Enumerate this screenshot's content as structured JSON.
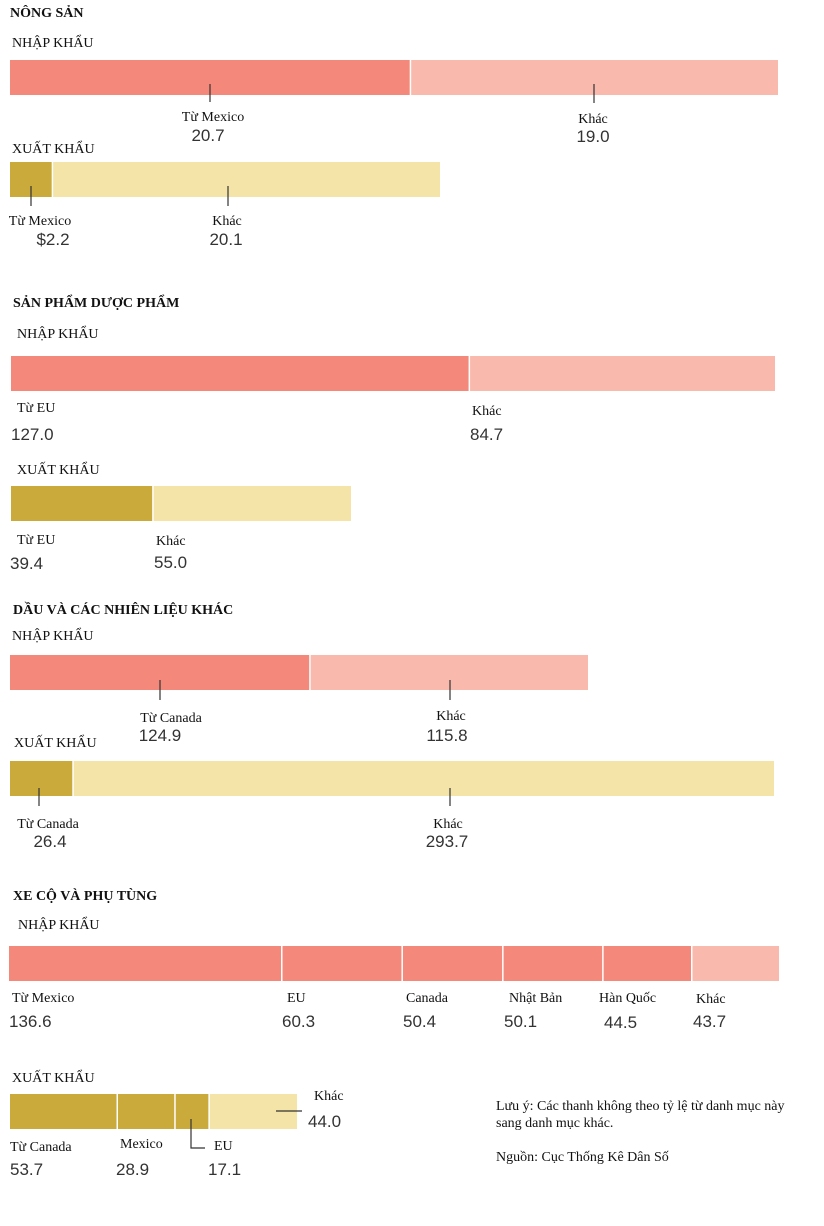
{
  "colors": {
    "import_main": "#f4887a",
    "import_other": "#f9b9ad",
    "export_main": "#c9aa3a",
    "export_other": "#f4e4a8",
    "tick": "#333333"
  },
  "chart_data": [
    {
      "type": "bar",
      "title": "NÔNG SẢN",
      "groups": [
        {
          "label": "NHẬP KHẨU",
          "kind": "import",
          "segments": [
            {
              "label": "Từ Mexico",
              "value": 20.7,
              "display": "20.7"
            },
            {
              "label": "Khác",
              "value": 19.0,
              "display": "19.0"
            }
          ]
        },
        {
          "label": "XUẤT KHẨU",
          "kind": "export",
          "segments": [
            {
              "label": "Từ Mexico",
              "value": 2.2,
              "display": "$2.2"
            },
            {
              "label": "Khác",
              "value": 20.1,
              "display": "20.1"
            }
          ]
        }
      ]
    },
    {
      "type": "bar",
      "title": "SẢN PHẨM DƯỢC PHẨM",
      "groups": [
        {
          "label": "NHẬP KHẨU",
          "kind": "import",
          "segments": [
            {
              "label": "Từ EU",
              "value": 127.0,
              "display": "127.0"
            },
            {
              "label": "Khác",
              "value": 84.7,
              "display": "84.7"
            }
          ]
        },
        {
          "label": "XUẤT KHẨU",
          "kind": "export",
          "segments": [
            {
              "label": "Từ EU",
              "value": 39.4,
              "display": "39.4"
            },
            {
              "label": "Khác",
              "value": 55.0,
              "display": "55.0"
            }
          ]
        }
      ]
    },
    {
      "type": "bar",
      "title": "DẦU VÀ CÁC NHIÊN LIỆU KHÁC",
      "groups": [
        {
          "label": "NHẬP KHẨU",
          "kind": "import",
          "segments": [
            {
              "label": "Từ Canada",
              "value": 124.9,
              "display": "124.9"
            },
            {
              "label": "Khác",
              "value": 115.8,
              "display": "115.8"
            }
          ]
        },
        {
          "label": "XUẤT KHẨU",
          "kind": "export",
          "segments": [
            {
              "label": "Từ Canada",
              "value": 26.4,
              "display": "26.4"
            },
            {
              "label": "Khác",
              "value": 293.7,
              "display": "293.7"
            }
          ]
        }
      ]
    },
    {
      "type": "bar",
      "title": "XE CỘ VÀ PHỤ TÙNG",
      "groups": [
        {
          "label": "NHẬP KHẨU",
          "kind": "import",
          "segments": [
            {
              "label": "Từ Mexico",
              "value": 136.6,
              "display": "136.6"
            },
            {
              "label": "EU",
              "value": 60.3,
              "display": "60.3"
            },
            {
              "label": "Canada",
              "value": 50.4,
              "display": "50.4"
            },
            {
              "label": "Nhật Bản",
              "value": 50.1,
              "display": "50.1"
            },
            {
              "label": "Hàn Quốc",
              "value": 44.5,
              "display": "44.5"
            },
            {
              "label": "Khác",
              "value": 43.7,
              "display": "43.7"
            }
          ]
        },
        {
          "label": "XUẤT KHẨU",
          "kind": "export",
          "segments": [
            {
              "label": "Từ Canada",
              "value": 53.7,
              "display": "53.7"
            },
            {
              "label": "Mexico",
              "value": 28.9,
              "display": "28.9"
            },
            {
              "label": "EU",
              "value": 17.1,
              "display": "17.1"
            },
            {
              "label": "Khác",
              "value": 44.0,
              "display": "44.0"
            }
          ]
        }
      ]
    }
  ],
  "note": {
    "line1": "Lưu ý: Các thanh không theo tỷ lệ từ danh mục này",
    "line2": "sang danh mục khác.",
    "source": "Nguồn: Cục Thống Kê Dân Số"
  }
}
